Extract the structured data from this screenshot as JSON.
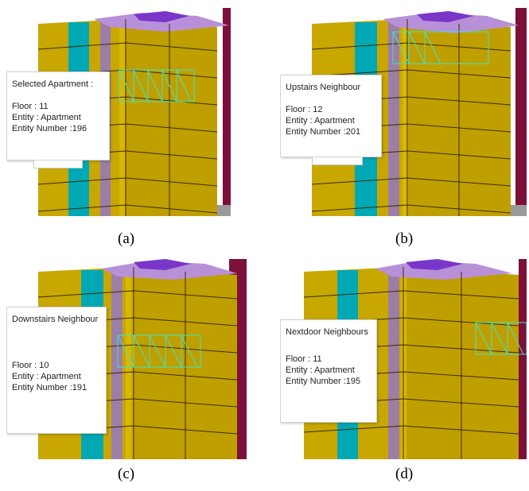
{
  "colors": {
    "facade": "#c8a700",
    "facade_dark": "#a88c00",
    "cyan_stripe": "#00a8b5",
    "lilac_stripe": "#9c7ea6",
    "roof_purple": "#7a36c9",
    "highlight": "#3ce6c8",
    "ground": "#9a9a9a"
  },
  "panels": [
    {
      "caption": "(a)",
      "popup": {
        "title": "Selected Apartment :",
        "floor": "Floor : 11",
        "entity": "Entity : Apartment",
        "number": "Entity Number :196"
      }
    },
    {
      "caption": "(b)",
      "popup": {
        "title": "Upstairs Neighbour",
        "floor": "Floor : 12",
        "entity": "Entity : Apartment",
        "number": "Entity Number :201"
      }
    },
    {
      "caption": "(c)",
      "popup": {
        "title": "Downstairs Neighbour",
        "floor": "Floor : 10",
        "entity": "Entity : Apartment",
        "number": "Entity Number :191"
      }
    },
    {
      "caption": "(d)",
      "popup": {
        "title": "Nextdoor Neighbours",
        "floor": "Floor : 11",
        "entity": "Entity : Apartment",
        "number": "Entity Number :195"
      }
    }
  ]
}
